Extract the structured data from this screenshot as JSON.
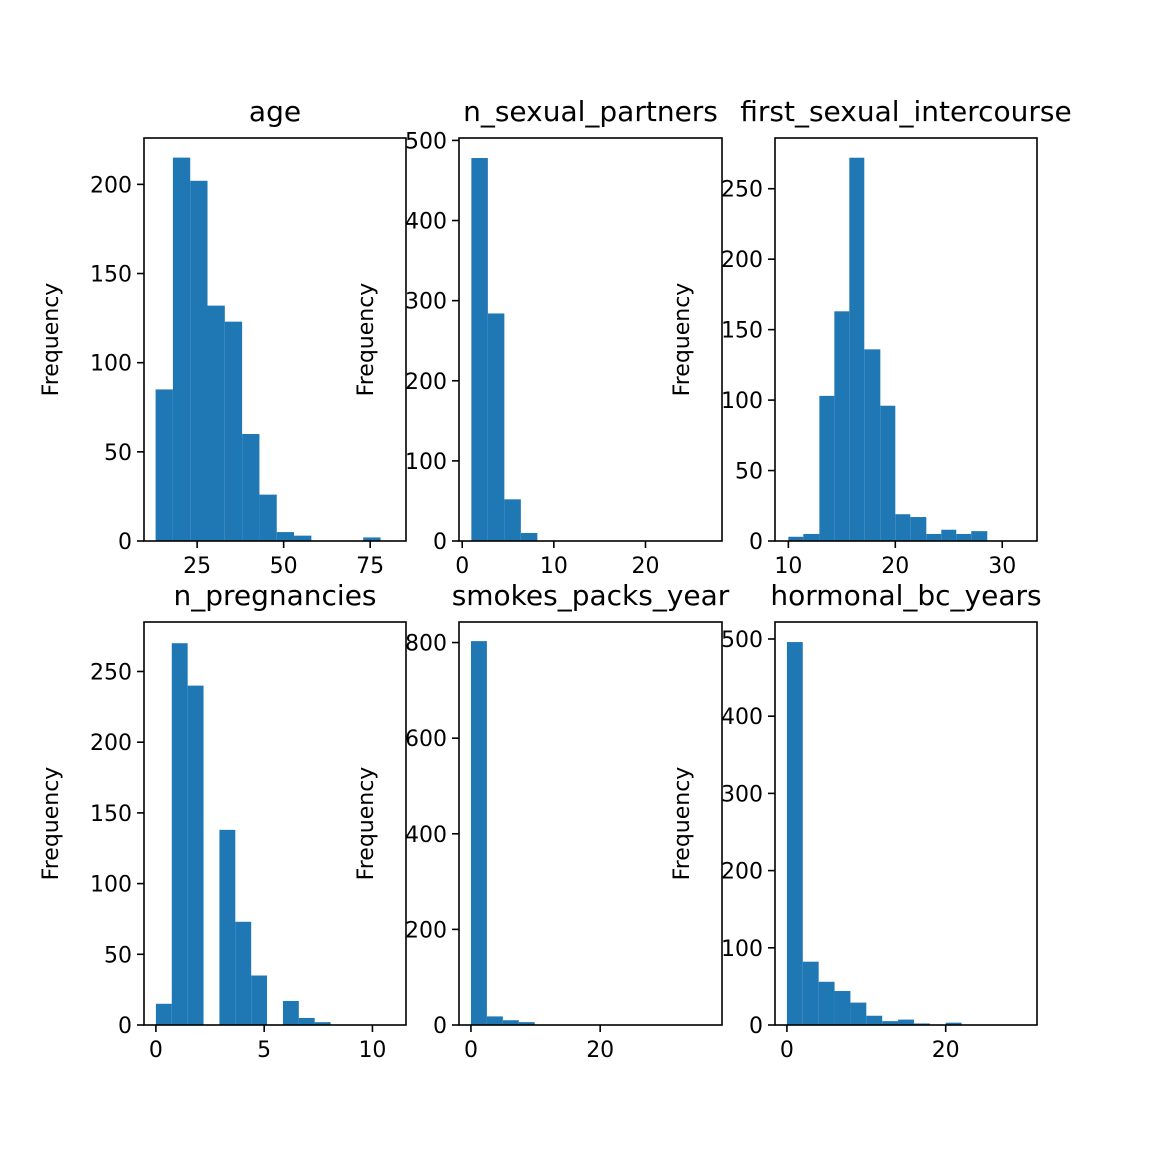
{
  "figure": {
    "bar_color": "#1f77b4",
    "axes_color": "#000000",
    "background": "#ffffff"
  },
  "chart_data": [
    {
      "type": "bar",
      "title": "age",
      "ylabel": "Frequency",
      "xlabel": "",
      "xlim": [
        9.65,
        85.35
      ],
      "ylim": [
        0,
        226
      ],
      "xticks": [
        25,
        50,
        75
      ],
      "yticks": [
        0,
        50,
        100,
        150,
        200
      ],
      "bin_edges": [
        13,
        18,
        23,
        28,
        33,
        38,
        43,
        48,
        53,
        58,
        63,
        68,
        73,
        78,
        82
      ],
      "values": [
        85,
        215,
        202,
        132,
        123,
        60,
        26,
        5,
        3,
        0,
        0,
        0,
        2,
        0
      ]
    },
    {
      "type": "bar",
      "title": "n_sexual_partners",
      "ylabel": "Frequency",
      "xlabel": "",
      "xlim": [
        -0.35,
        28.35
      ],
      "ylim": [
        0,
        503
      ],
      "xticks": [
        0,
        10,
        20
      ],
      "yticks": [
        0,
        100,
        200,
        300,
        400,
        500
      ],
      "bin_edges": [
        1,
        2.8,
        4.6,
        6.4,
        8.2,
        10,
        11.8,
        13.6,
        15.4,
        17.2,
        19,
        20.8,
        22.6,
        24.4,
        26.2,
        28
      ],
      "values": [
        478,
        284,
        52,
        10,
        0,
        0,
        0,
        0,
        0,
        0,
        0,
        0,
        0,
        0,
        0
      ]
    },
    {
      "type": "bar",
      "title": "first_sexual_intercourse",
      "ylabel": "Frequency",
      "xlabel": "",
      "xlim": [
        8.75,
        33.25
      ],
      "ylim": [
        0,
        286
      ],
      "xticks": [
        10,
        20,
        30
      ],
      "yticks": [
        0,
        50,
        100,
        150,
        200,
        250
      ],
      "bin_edges": [
        10,
        11.4,
        12.9,
        14.3,
        15.7,
        17.1,
        18.6,
        20,
        21.4,
        22.9,
        24.3,
        25.7,
        27.1,
        28.6,
        30,
        31.5
      ],
      "values": [
        3,
        5,
        103,
        163,
        272,
        136,
        96,
        19,
        17,
        5,
        8,
        5,
        7,
        0,
        0
      ]
    },
    {
      "type": "bar",
      "title": "n_pregnancies",
      "ylabel": "Frequency",
      "xlabel": "",
      "xlim": [
        -0.55,
        11.55
      ],
      "ylim": [
        0,
        285
      ],
      "xticks": [
        0,
        5,
        10
      ],
      "yticks": [
        0,
        50,
        100,
        150,
        200,
        250
      ],
      "bin_edges": [
        0,
        0.733,
        1.467,
        2.2,
        2.933,
        3.667,
        4.4,
        5.133,
        5.867,
        6.6,
        7.333,
        8.067,
        8.8,
        9.533,
        10.267,
        11
      ],
      "values": [
        15,
        270,
        240,
        0,
        138,
        73,
        35,
        0,
        17,
        5,
        2,
        0,
        0,
        0,
        0
      ]
    },
    {
      "type": "bar",
      "title": "smokes_packs_year",
      "ylabel": "Frequency",
      "xlabel": "",
      "xlim": [
        -1.85,
        38.85
      ],
      "ylim": [
        0,
        843
      ],
      "xticks": [
        0,
        20
      ],
      "yticks": [
        0,
        200,
        400,
        600,
        800
      ],
      "bin_edges": [
        0,
        2.47,
        4.93,
        7.4,
        9.87,
        12.33,
        14.8,
        17.27,
        19.73,
        22.2,
        24.67,
        27.13,
        29.6,
        32.07,
        34.53,
        37
      ],
      "values": [
        803,
        18,
        10,
        6,
        0,
        0,
        0,
        0,
        0,
        0,
        0,
        0,
        0,
        0,
        0
      ]
    },
    {
      "type": "bar",
      "title": "hormonal_bc_years",
      "ylabel": "Frequency",
      "xlabel": "",
      "xlim": [
        -1.5,
        31.5
      ],
      "ylim": [
        0,
        522
      ],
      "xticks": [
        0,
        20
      ],
      "yticks": [
        0,
        100,
        200,
        300,
        400,
        500
      ],
      "bin_edges": [
        0,
        2,
        4,
        6,
        8,
        10,
        12,
        14,
        16,
        18,
        20,
        22,
        24,
        26,
        28,
        30
      ],
      "values": [
        496,
        82,
        56,
        44,
        29,
        12,
        5,
        7,
        2,
        0,
        3,
        0,
        0,
        0,
        0
      ]
    }
  ]
}
